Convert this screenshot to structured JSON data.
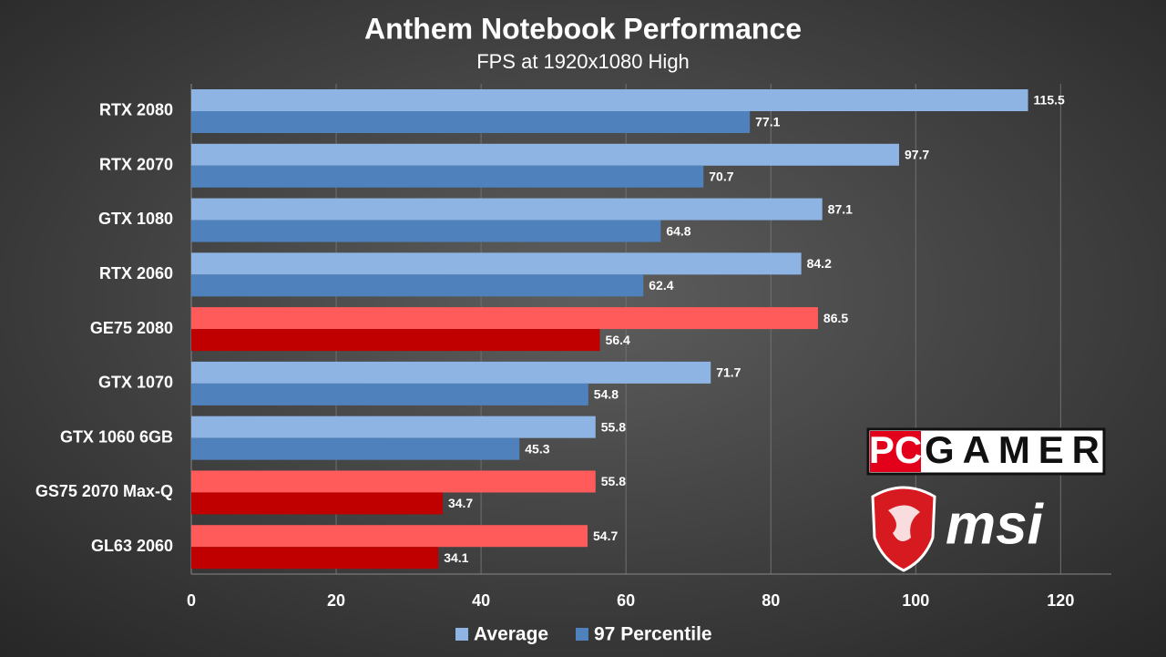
{
  "chart_data": {
    "type": "bar",
    "orientation": "horizontal",
    "title": "Anthem Notebook Performance",
    "subtitle": "FPS at 1920x1080 High",
    "categories": [
      "RTX 2080",
      "RTX 2070",
      "GTX 1080",
      "RTX 2060",
      "GE75 2080",
      "GTX 1070",
      "GTX 1060 6GB",
      "GS75 2070 Max-Q",
      "GL63 2060"
    ],
    "highlight": [
      false,
      false,
      false,
      false,
      true,
      false,
      false,
      true,
      true
    ],
    "series": [
      {
        "name": "Average",
        "color": "#8eb4e3",
        "highlight_color": "#ff5b5b",
        "values": [
          115.5,
          97.7,
          87.1,
          84.2,
          86.5,
          71.7,
          55.8,
          55.8,
          54.7
        ]
      },
      {
        "name": "97 Percentile",
        "color": "#4f81bd",
        "highlight_color": "#c00000",
        "values": [
          77.1,
          70.7,
          64.8,
          62.4,
          56.4,
          54.8,
          45.3,
          34.7,
          34.1
        ]
      }
    ],
    "xlim": [
      0,
      127
    ],
    "xticks": [
      0,
      20,
      40,
      60,
      80,
      100,
      120
    ],
    "grid": true,
    "legend": "bottom",
    "logos": {
      "pc": "PC",
      "gamer": "GAMER",
      "msi": "msi"
    }
  }
}
